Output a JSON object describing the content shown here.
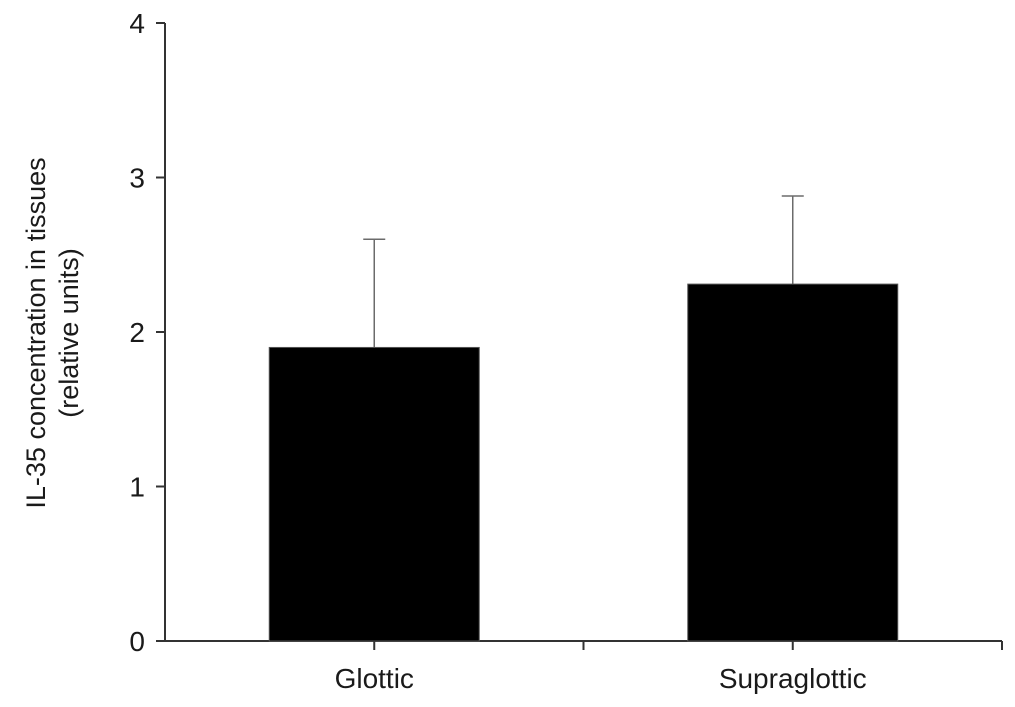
{
  "chart_data": {
    "type": "bar",
    "title": "",
    "xlabel": "",
    "ylabel_lines": [
      "IL-35 concentration in tissues",
      "(relative units)"
    ],
    "categories": [
      "Glottic",
      "Supraglottic"
    ],
    "values": [
      1.9,
      2.31
    ],
    "error_upper": [
      2.6,
      2.88
    ],
    "ylim": [
      0,
      4
    ],
    "yticks": [
      "0",
      "1",
      "2",
      "3",
      "4"
    ],
    "grid": false,
    "legend": "none",
    "bar_color": "#000000",
    "axis_color": "#333333"
  }
}
